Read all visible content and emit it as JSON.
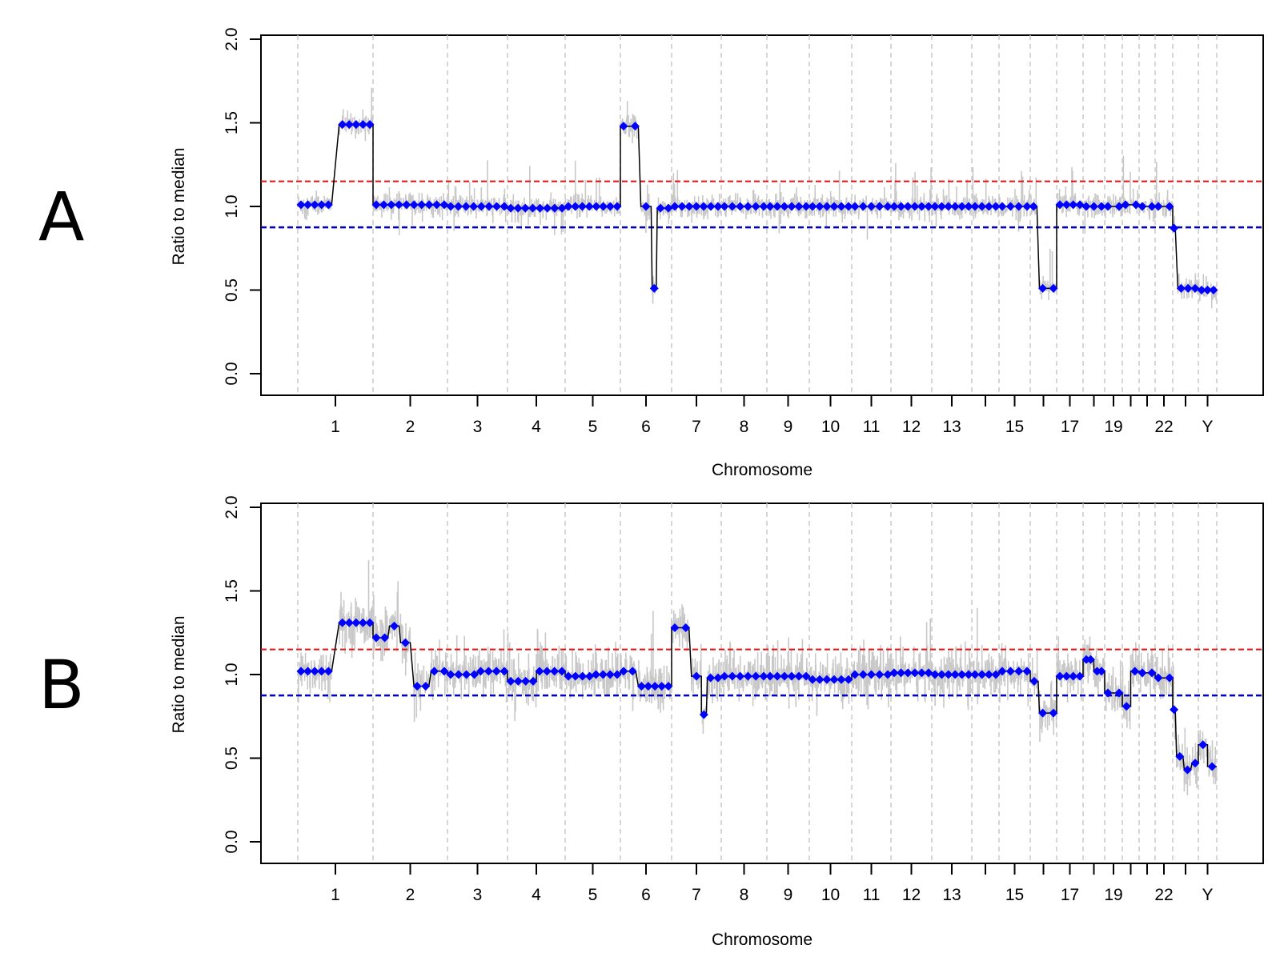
{
  "colors": {
    "raw": "#c8c8c8",
    "segment": "#000000",
    "call_point": "#0000ff",
    "gain_threshold": "#e01010",
    "loss_threshold": "#0000c0",
    "chrom_boundary": "#c8c8c8"
  },
  "chart_data": [
    {
      "type": "scatter",
      "panel_label": "A",
      "xlabel": "Chromosome",
      "ylabel": "Ratio to median",
      "ylim": [
        0,
        2
      ],
      "yticks": [
        "0.0",
        "0.5",
        "1.0",
        "1.5",
        "2.0"
      ],
      "chromosome_labels": [
        {
          "label": "1",
          "pos": 1
        },
        {
          "label": "2",
          "pos": 2
        },
        {
          "label": "3",
          "pos": 3
        },
        {
          "label": "4",
          "pos": 4
        },
        {
          "label": "5",
          "pos": 5
        },
        {
          "label": "6",
          "pos": 6
        },
        {
          "label": "7",
          "pos": 7
        },
        {
          "label": "8",
          "pos": 8
        },
        {
          "label": "9",
          "pos": 9
        },
        {
          "label": "10",
          "pos": 10
        },
        {
          "label": "11",
          "pos": 11
        },
        {
          "label": "12",
          "pos": 12
        },
        {
          "label": "13",
          "pos": 13
        },
        {
          "label": "15",
          "pos": 15
        },
        {
          "label": "17",
          "pos": 17
        },
        {
          "label": "19",
          "pos": 19
        },
        {
          "label": "22",
          "pos": 22
        },
        {
          "label": "Y",
          "pos": 24
        }
      ],
      "grid": "vertical dashed lines at chromosome boundaries",
      "thresholds": {
        "gain": 1.15,
        "loss": 0.875
      },
      "segments": [
        {
          "chrom": "1",
          "start": 0,
          "end": 0.45,
          "value": 1.01
        },
        {
          "chrom": "1",
          "start": 0.55,
          "end": 1,
          "value": 1.49
        },
        {
          "chrom": "2",
          "start": 0,
          "end": 1,
          "value": 1.01
        },
        {
          "chrom": "3",
          "start": 0,
          "end": 1,
          "value": 1.0
        },
        {
          "chrom": "4",
          "start": 0,
          "end": 1,
          "value": 0.99
        },
        {
          "chrom": "5",
          "start": 0,
          "end": 1,
          "value": 1.0
        },
        {
          "chrom": "6",
          "start": 0,
          "end": 0.35,
          "value": 1.48
        },
        {
          "chrom": "6",
          "start": 0.4,
          "end": 0.6,
          "value": 1.0
        },
        {
          "chrom": "6",
          "start": 0.62,
          "end": 0.7,
          "value": 0.51
        },
        {
          "chrom": "6",
          "start": 0.72,
          "end": 1,
          "value": 0.99
        },
        {
          "chrom": "7",
          "start": 0,
          "end": 1,
          "value": 1.0
        },
        {
          "chrom": "8",
          "start": 0,
          "end": 1,
          "value": 1.0
        },
        {
          "chrom": "9",
          "start": 0,
          "end": 1,
          "value": 1.0
        },
        {
          "chrom": "10",
          "start": 0,
          "end": 1,
          "value": 1.0
        },
        {
          "chrom": "11",
          "start": 0,
          "end": 1,
          "value": 1.0
        },
        {
          "chrom": "12",
          "start": 0,
          "end": 1,
          "value": 1.0
        },
        {
          "chrom": "13",
          "start": 0,
          "end": 1,
          "value": 1.0
        },
        {
          "chrom": "14",
          "start": 0,
          "end": 1,
          "value": 1.0
        },
        {
          "chrom": "15",
          "start": 0,
          "end": 1,
          "value": 1.0
        },
        {
          "chrom": "16",
          "start": 0,
          "end": 0.25,
          "value": 1.0
        },
        {
          "chrom": "16",
          "start": 0.35,
          "end": 1,
          "value": 0.51
        },
        {
          "chrom": "17",
          "start": 0,
          "end": 1,
          "value": 1.01
        },
        {
          "chrom": "18",
          "start": 0,
          "end": 1,
          "value": 1.0
        },
        {
          "chrom": "19",
          "start": 0,
          "end": 1,
          "value": 1.0
        },
        {
          "chrom": "20",
          "start": 0,
          "end": 1,
          "value": 1.01
        },
        {
          "chrom": "21",
          "start": 0,
          "end": 1,
          "value": 1.0
        },
        {
          "chrom": "22",
          "start": 0,
          "end": 1,
          "value": 1.0
        },
        {
          "chrom": "X",
          "start": 0,
          "end": 0.1,
          "value": 0.87
        },
        {
          "chrom": "X",
          "start": 0.2,
          "end": 1,
          "value": 0.51
        },
        {
          "chrom": "Y",
          "start": 0,
          "end": 1,
          "value": 0.5
        }
      ]
    },
    {
      "type": "scatter",
      "panel_label": "B",
      "xlabel": "Chromosome",
      "ylabel": "Ratio to median",
      "ylim": [
        0,
        2
      ],
      "yticks": [
        "0.0",
        "0.5",
        "1.0",
        "1.5",
        "2.0"
      ],
      "chromosome_labels": [
        {
          "label": "1",
          "pos": 1
        },
        {
          "label": "2",
          "pos": 2
        },
        {
          "label": "3",
          "pos": 3
        },
        {
          "label": "4",
          "pos": 4
        },
        {
          "label": "5",
          "pos": 5
        },
        {
          "label": "6",
          "pos": 6
        },
        {
          "label": "7",
          "pos": 7
        },
        {
          "label": "8",
          "pos": 8
        },
        {
          "label": "9",
          "pos": 9
        },
        {
          "label": "10",
          "pos": 10
        },
        {
          "label": "11",
          "pos": 11
        },
        {
          "label": "12",
          "pos": 12
        },
        {
          "label": "13",
          "pos": 13
        },
        {
          "label": "15",
          "pos": 15
        },
        {
          "label": "17",
          "pos": 17
        },
        {
          "label": "19",
          "pos": 19
        },
        {
          "label": "22",
          "pos": 22
        },
        {
          "label": "Y",
          "pos": 24
        }
      ],
      "grid": "vertical dashed lines at chromosome boundaries",
      "thresholds": {
        "gain": 1.15,
        "loss": 0.875
      },
      "segments": [
        {
          "chrom": "1",
          "start": 0,
          "end": 0.45,
          "value": 1.02
        },
        {
          "chrom": "1",
          "start": 0.55,
          "end": 1,
          "value": 1.31
        },
        {
          "chrom": "2",
          "start": 0,
          "end": 0.2,
          "value": 1.22
        },
        {
          "chrom": "2",
          "start": 0.22,
          "end": 0.35,
          "value": 1.29
        },
        {
          "chrom": "2",
          "start": 0.37,
          "end": 0.5,
          "value": 1.19
        },
        {
          "chrom": "2",
          "start": 0.55,
          "end": 0.75,
          "value": 0.93
        },
        {
          "chrom": "2",
          "start": 0.78,
          "end": 1,
          "value": 1.02
        },
        {
          "chrom": "3",
          "start": 0,
          "end": 0.5,
          "value": 1.0
        },
        {
          "chrom": "3",
          "start": 0.5,
          "end": 1,
          "value": 1.02
        },
        {
          "chrom": "4",
          "start": 0,
          "end": 0.5,
          "value": 0.96
        },
        {
          "chrom": "4",
          "start": 0.5,
          "end": 1,
          "value": 1.02
        },
        {
          "chrom": "5",
          "start": 0,
          "end": 0.5,
          "value": 0.99
        },
        {
          "chrom": "5",
          "start": 0.5,
          "end": 1,
          "value": 1.0
        },
        {
          "chrom": "6",
          "start": 0,
          "end": 0.3,
          "value": 1.02
        },
        {
          "chrom": "6",
          "start": 0.35,
          "end": 1,
          "value": 0.93
        },
        {
          "chrom": "7",
          "start": 0,
          "end": 0.35,
          "value": 1.28
        },
        {
          "chrom": "7",
          "start": 0.4,
          "end": 0.6,
          "value": 0.99
        },
        {
          "chrom": "7",
          "start": 0.6,
          "end": 0.7,
          "value": 0.76
        },
        {
          "chrom": "7",
          "start": 0.72,
          "end": 1,
          "value": 0.98
        },
        {
          "chrom": "8",
          "start": 0,
          "end": 1,
          "value": 0.99
        },
        {
          "chrom": "9",
          "start": 0,
          "end": 1,
          "value": 0.99
        },
        {
          "chrom": "10",
          "start": 0,
          "end": 1,
          "value": 0.97
        },
        {
          "chrom": "11",
          "start": 0,
          "end": 1,
          "value": 1.0
        },
        {
          "chrom": "12",
          "start": 0,
          "end": 1,
          "value": 1.01
        },
        {
          "chrom": "13",
          "start": 0,
          "end": 1,
          "value": 1.0
        },
        {
          "chrom": "14",
          "start": 0,
          "end": 1,
          "value": 1.0
        },
        {
          "chrom": "15",
          "start": 0,
          "end": 1,
          "value": 1.02
        },
        {
          "chrom": "16",
          "start": 0,
          "end": 0.3,
          "value": 0.96
        },
        {
          "chrom": "16",
          "start": 0.35,
          "end": 1,
          "value": 0.77
        },
        {
          "chrom": "17",
          "start": 0,
          "end": 1,
          "value": 0.99
        },
        {
          "chrom": "18",
          "start": 0,
          "end": 0.5,
          "value": 1.09
        },
        {
          "chrom": "18",
          "start": 0.5,
          "end": 1,
          "value": 1.02
        },
        {
          "chrom": "19",
          "start": 0,
          "end": 1,
          "value": 0.89
        },
        {
          "chrom": "20",
          "start": 0,
          "end": 0.5,
          "value": 0.81
        },
        {
          "chrom": "20",
          "start": 0.5,
          "end": 1,
          "value": 1.02
        },
        {
          "chrom": "21",
          "start": 0,
          "end": 1,
          "value": 1.01
        },
        {
          "chrom": "22",
          "start": 0,
          "end": 1,
          "value": 0.98
        },
        {
          "chrom": "X",
          "start": 0,
          "end": 0.1,
          "value": 0.79
        },
        {
          "chrom": "X",
          "start": 0.15,
          "end": 0.4,
          "value": 0.51
        },
        {
          "chrom": "X",
          "start": 0.45,
          "end": 0.7,
          "value": 0.43
        },
        {
          "chrom": "X",
          "start": 0.75,
          "end": 1,
          "value": 0.47
        },
        {
          "chrom": "Y",
          "start": 0,
          "end": 0.5,
          "value": 0.58
        },
        {
          "chrom": "Y",
          "start": 0.5,
          "end": 1,
          "value": 0.45
        }
      ]
    }
  ]
}
